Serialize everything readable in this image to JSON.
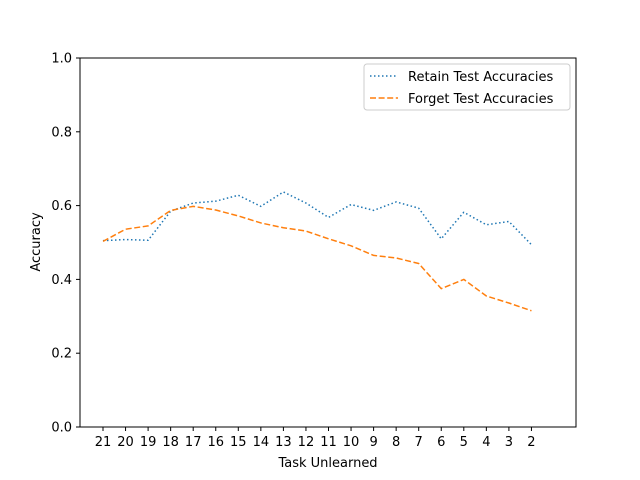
{
  "chart_data": {
    "type": "line",
    "xlabel": "Task Unlearned",
    "ylabel": "Accuracy",
    "ylim": [
      0.0,
      1.0
    ],
    "yticks": [
      "0.0",
      "0.2",
      "0.4",
      "0.6",
      "0.8",
      "1.0"
    ],
    "categories": [
      "21",
      "20",
      "19",
      "18",
      "17",
      "16",
      "15",
      "14",
      "13",
      "12",
      "11",
      "10",
      "9",
      "8",
      "7",
      "6",
      "5",
      "4",
      "3",
      "2"
    ],
    "grid": false,
    "legend_position": "top-right",
    "series": [
      {
        "name": "Retain Test Accuracies",
        "color": "#1f77b4",
        "style": "dotted",
        "values": [
          0.505,
          0.508,
          0.506,
          0.585,
          0.607,
          0.612,
          0.628,
          0.598,
          0.637,
          0.607,
          0.568,
          0.603,
          0.587,
          0.61,
          0.593,
          0.51,
          0.582,
          0.548,
          0.557,
          0.494
        ]
      },
      {
        "name": "Forget Test Accuracies",
        "color": "#ff7f0e",
        "style": "dashed",
        "values": [
          0.503,
          0.536,
          0.545,
          0.587,
          0.598,
          0.588,
          0.572,
          0.553,
          0.54,
          0.531,
          0.51,
          0.491,
          0.465,
          0.458,
          0.443,
          0.375,
          0.4,
          0.355,
          0.336,
          0.315
        ]
      }
    ]
  }
}
